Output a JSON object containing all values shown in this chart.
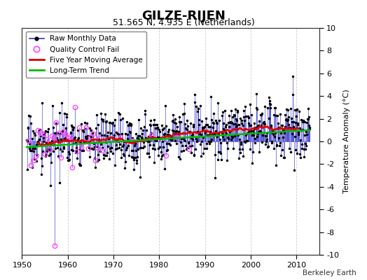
{
  "title": "GILZE-RIJEN",
  "subtitle": "51.565 N, 4.935 E (Netherlands)",
  "ylabel": "Temperature Anomaly (°C)",
  "attribution": "Berkeley Earth",
  "xlim": [
    1950,
    2015
  ],
  "ylim": [
    -10,
    10
  ],
  "yticks": [
    -10,
    -8,
    -6,
    -4,
    -2,
    0,
    2,
    4,
    6,
    8,
    10
  ],
  "xticks": [
    1950,
    1960,
    1970,
    1980,
    1990,
    2000,
    2010
  ],
  "bg_color": "#ffffff",
  "plot_bg_color": "#ffffff",
  "raw_line_color": "#3333cc",
  "raw_dot_color": "#000000",
  "qc_fail_color": "#ff44ff",
  "moving_avg_color": "#dd0000",
  "trend_color": "#00bb00",
  "grid_color": "#cccccc",
  "title_fontsize": 13,
  "subtitle_fontsize": 9,
  "label_fontsize": 8
}
